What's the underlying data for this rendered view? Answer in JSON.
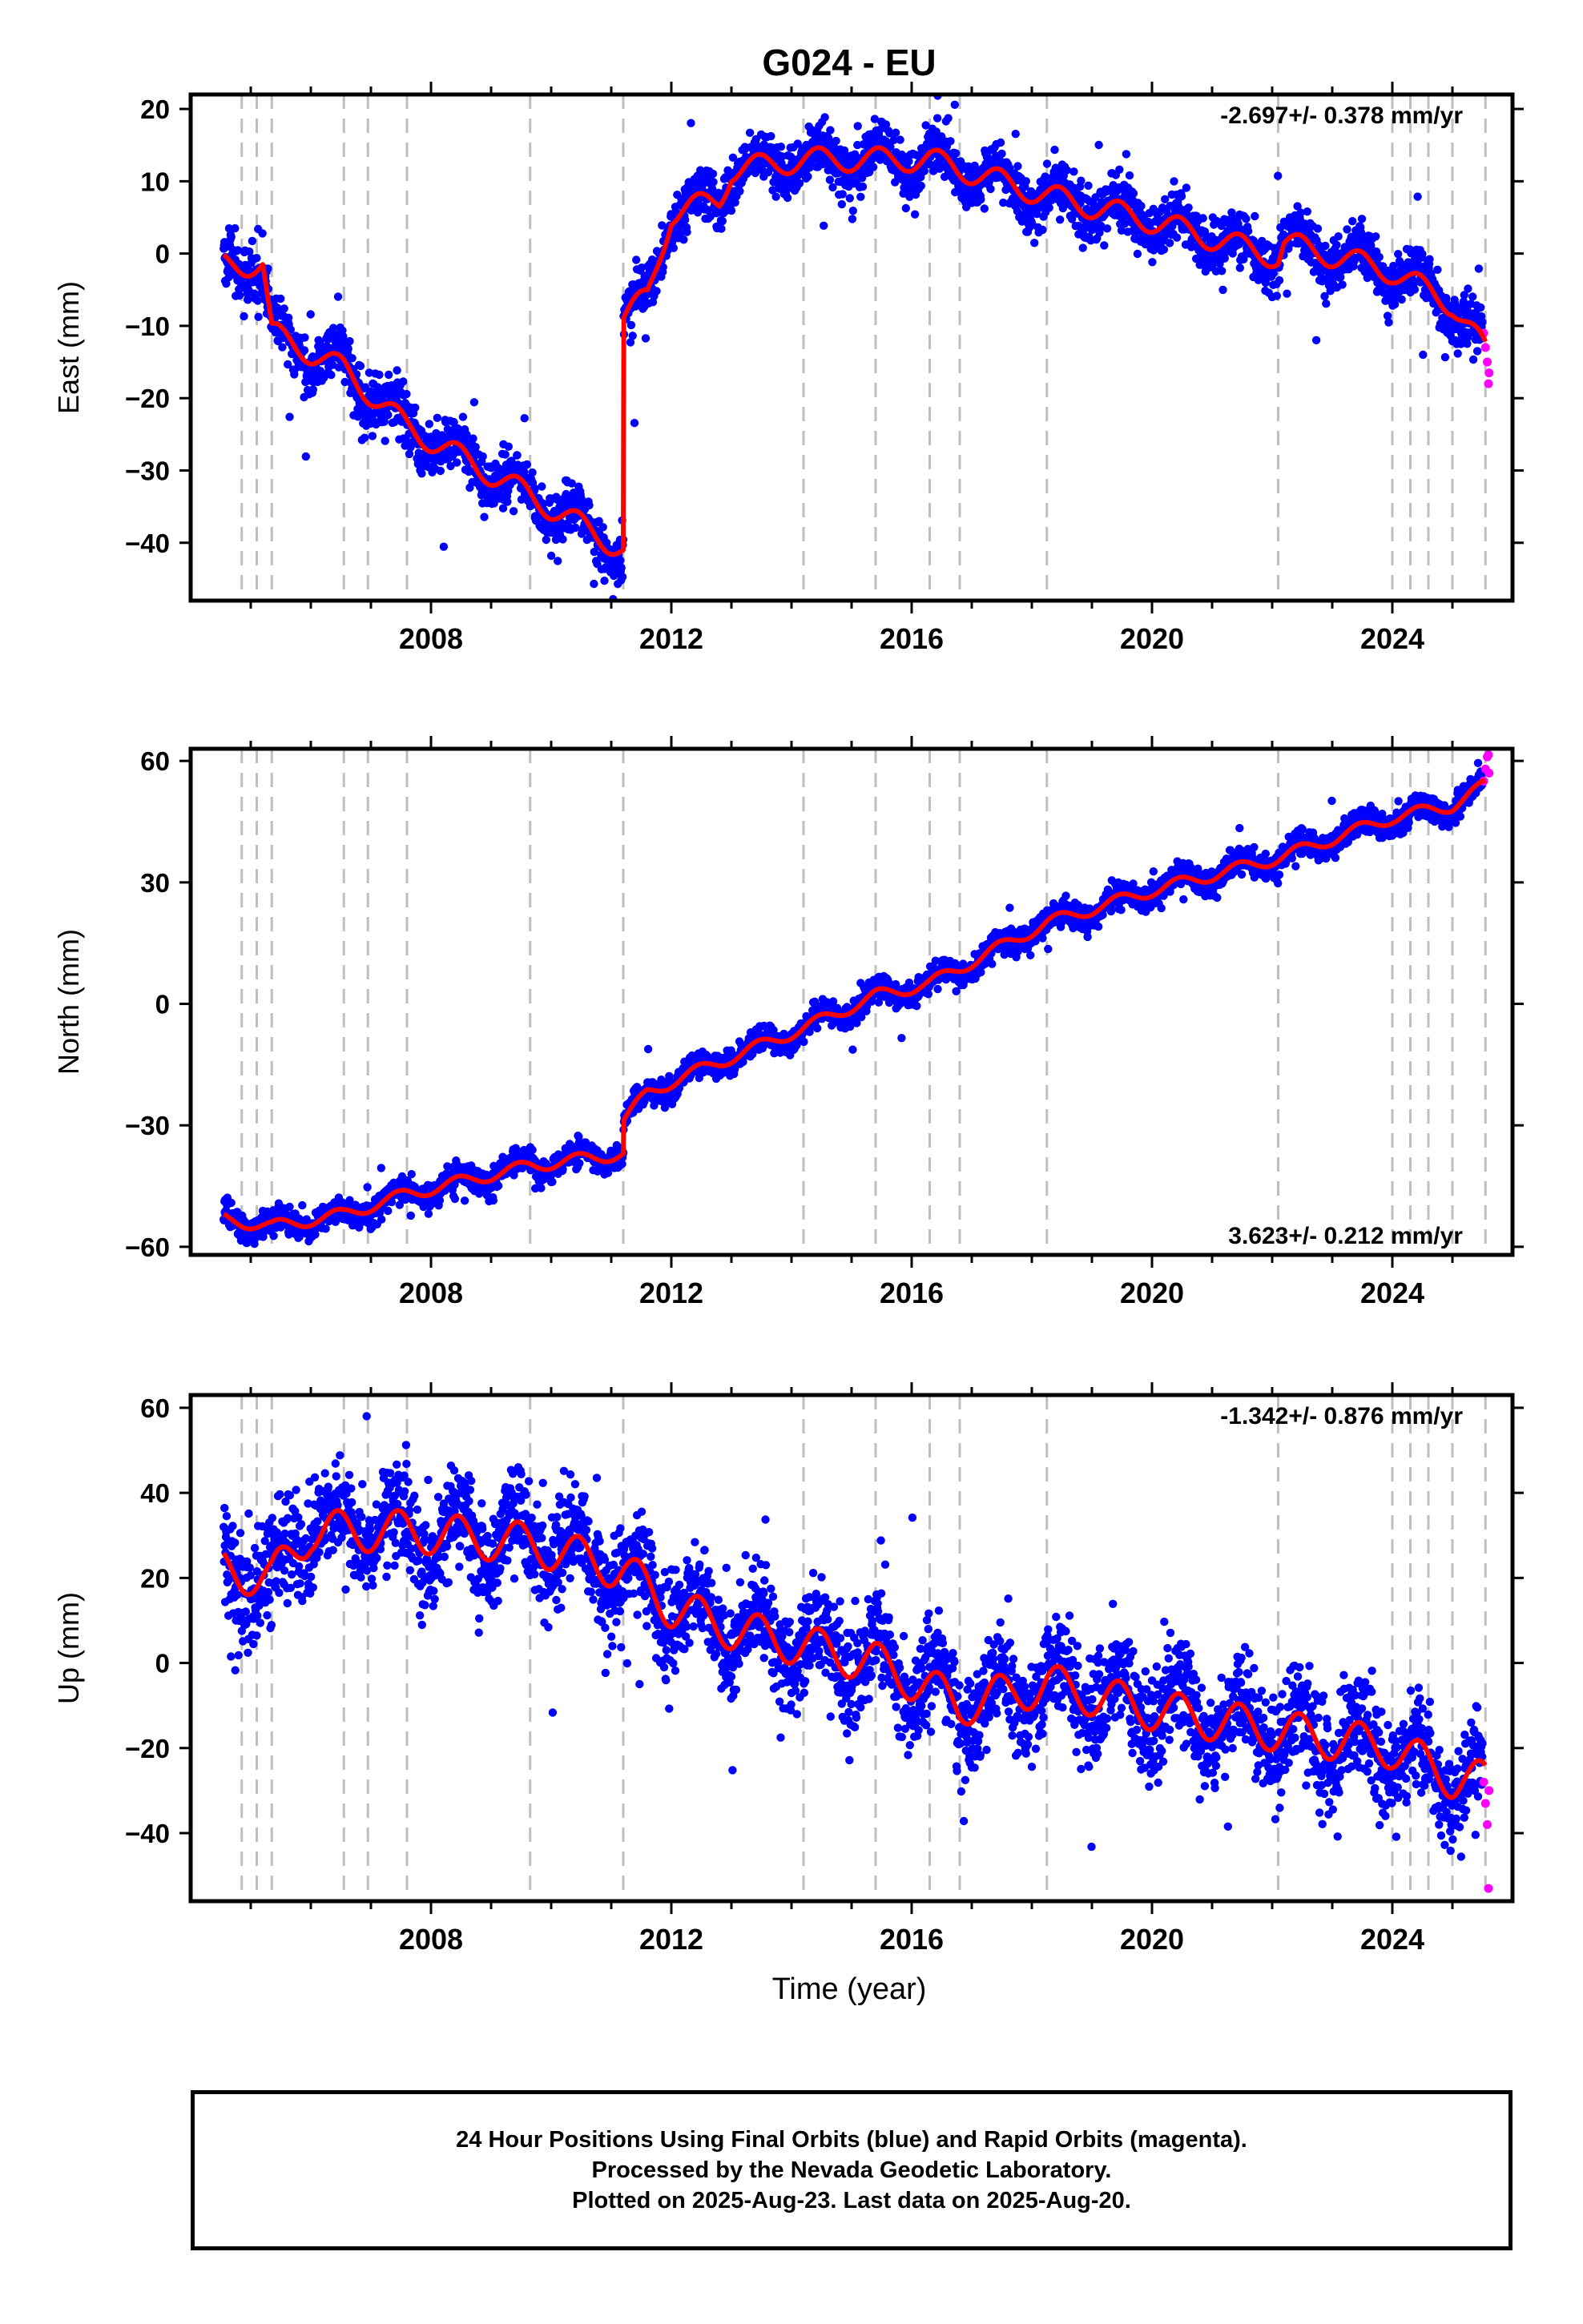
{
  "chart_data": {
    "title": "G024 - EU",
    "type": "scatter",
    "x_unit": "year",
    "xlim": [
      2004.0,
      2026.0
    ],
    "x_ticks": [
      2008,
      2012,
      2016,
      2020,
      2024
    ],
    "xlabel": "Time (year)",
    "step_lines": [
      2004.85,
      2005.1,
      2005.35,
      2006.55,
      2006.95,
      2007.6,
      2009.65,
      2011.2,
      2014.2,
      2015.4,
      2016.3,
      2016.8,
      2018.25,
      2022.1,
      2024.0,
      2024.3,
      2024.6,
      2025.0,
      2025.55
    ],
    "colors": {
      "final": "#0000ff",
      "rapid": "#ff00ff",
      "model": "#ff0000",
      "steps": "#bfbfbf"
    },
    "panels": [
      {
        "name": "east",
        "ylabel": "East (mm)",
        "ylim": [
          -48,
          22
        ],
        "y_ticks": [
          -40,
          -30,
          -20,
          -10,
          0,
          10,
          20
        ],
        "rate_text": "-2.697+/- 0.378 mm/yr",
        "rate_position": "top-right",
        "noise_mm": 1.8,
        "seasonal_amp_mm": 2.2,
        "model_breakpoints": [
          [
            2004.5,
            -1.5
          ],
          [
            2005.2,
            -1.5
          ],
          [
            2005.35,
            -11.0
          ],
          [
            2006.55,
            -16.0
          ],
          [
            2007.6,
            -24.0
          ],
          [
            2009.65,
            -33.5
          ],
          [
            2011.2,
            -41.0
          ],
          [
            2011.2,
            -9.0
          ],
          [
            2011.6,
            -6.0
          ],
          [
            2012.0,
            5.5
          ],
          [
            2012.8,
            7.5
          ],
          [
            2013.0,
            11.5
          ],
          [
            2014.2,
            13.0
          ],
          [
            2015.4,
            13.0
          ],
          [
            2016.3,
            13.0
          ],
          [
            2018.25,
            8.0
          ],
          [
            2020.0,
            4.5
          ],
          [
            2022.1,
            -0.5
          ],
          [
            2022.2,
            1.5
          ],
          [
            2024.0,
            -2.5
          ],
          [
            2025.0,
            -7.0
          ],
          [
            2025.55,
            -13.5
          ]
        ],
        "rapid_points": [
          [
            2025.52,
            -11
          ],
          [
            2025.55,
            -13
          ],
          [
            2025.58,
            -15
          ],
          [
            2025.6,
            -18
          ],
          [
            2025.61,
            -16.5
          ]
        ]
      },
      {
        "name": "north",
        "ylabel": "North (mm)",
        "ylim": [
          -62,
          63
        ],
        "y_ticks": [
          -60,
          -30,
          0,
          30,
          60
        ],
        "rate_text": "3.623+/- 0.212 mm/yr",
        "rate_position": "bottom-right",
        "noise_mm": 1.5,
        "seasonal_amp_mm": 2.0,
        "model_breakpoints": [
          [
            2004.5,
            -53.0
          ],
          [
            2005.35,
            -55.0
          ],
          [
            2006.55,
            -52.0
          ],
          [
            2007.6,
            -47.0
          ],
          [
            2009.65,
            -40.0
          ],
          [
            2011.2,
            -37.0
          ],
          [
            2011.2,
            -29.0
          ],
          [
            2011.6,
            -22.0
          ],
          [
            2012.2,
            -18.0
          ],
          [
            2014.2,
            -6.0
          ],
          [
            2015.4,
            2.0
          ],
          [
            2016.3,
            5.0
          ],
          [
            2018.25,
            20.0
          ],
          [
            2020.0,
            28.0
          ],
          [
            2022.1,
            36.0
          ],
          [
            2024.0,
            46.0
          ],
          [
            2025.0,
            49.0
          ],
          [
            2025.55,
            54.0
          ]
        ],
        "rapid_points": [
          [
            2025.52,
            55
          ],
          [
            2025.55,
            58
          ],
          [
            2025.58,
            61
          ],
          [
            2025.6,
            61.5
          ],
          [
            2025.61,
            57
          ]
        ]
      },
      {
        "name": "up",
        "ylabel": "Up (mm)",
        "ylim": [
          -56,
          63
        ],
        "y_ticks": [
          -40,
          -20,
          0,
          20,
          40,
          60
        ],
        "rate_text": "-1.342+/- 0.876 mm/yr",
        "rate_position": "top-right",
        "noise_mm": 6.0,
        "seasonal_amp_mm": 6.5,
        "model_breakpoints": [
          [
            2004.5,
            22.0
          ],
          [
            2005.35,
            20.0
          ],
          [
            2006.0,
            31.0
          ],
          [
            2007.6,
            31.0
          ],
          [
            2009.65,
            28.0
          ],
          [
            2011.2,
            22.0
          ],
          [
            2012.0,
            13.0
          ],
          [
            2013.0,
            8.0
          ],
          [
            2014.2,
            4.0
          ],
          [
            2015.4,
            0.0
          ],
          [
            2016.3,
            -6.0
          ],
          [
            2016.8,
            -10.0
          ],
          [
            2018.25,
            -5.0
          ],
          [
            2020.0,
            -11.0
          ],
          [
            2022.1,
            -16.0
          ],
          [
            2024.0,
            -20.0
          ],
          [
            2025.0,
            -27.0
          ],
          [
            2025.55,
            -28.0
          ]
        ],
        "rapid_points": [
          [
            2025.52,
            -28
          ],
          [
            2025.55,
            -33
          ],
          [
            2025.58,
            -38
          ],
          [
            2025.6,
            -53
          ],
          [
            2025.61,
            -30
          ]
        ]
      }
    ]
  },
  "footer": {
    "line1": "24 Hour Positions Using Final Orbits (blue) and Rapid Orbits (magenta).",
    "line2": "Processed by the Nevada Geodetic Laboratory.",
    "line3": "Plotted on 2025-Aug-23. Last data on 2025-Aug-20."
  }
}
